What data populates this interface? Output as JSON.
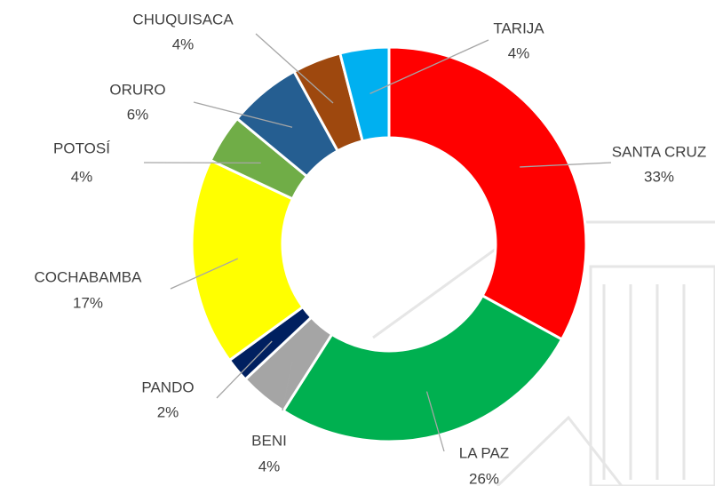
{
  "chart_data": {
    "type": "donut",
    "categories": [
      "SANTA CRUZ",
      "LA PAZ",
      "BENI",
      "PANDO",
      "COCHABAMBA",
      "POTOSÍ",
      "ORURO",
      "CHUQUISACA",
      "TARIJA"
    ],
    "values": [
      33,
      26,
      4,
      2,
      17,
      4,
      6,
      4,
      4
    ],
    "value_labels": [
      "33%",
      "26%",
      "4%",
      "2%",
      "17%",
      "4%",
      "6%",
      "4%",
      "4%"
    ],
    "colors": [
      "#ff0000",
      "#00b050",
      "#a5a5a5",
      "#002060",
      "#ffff00",
      "#70ad47",
      "#255e91",
      "#9e480e",
      "#00b0f0"
    ]
  }
}
